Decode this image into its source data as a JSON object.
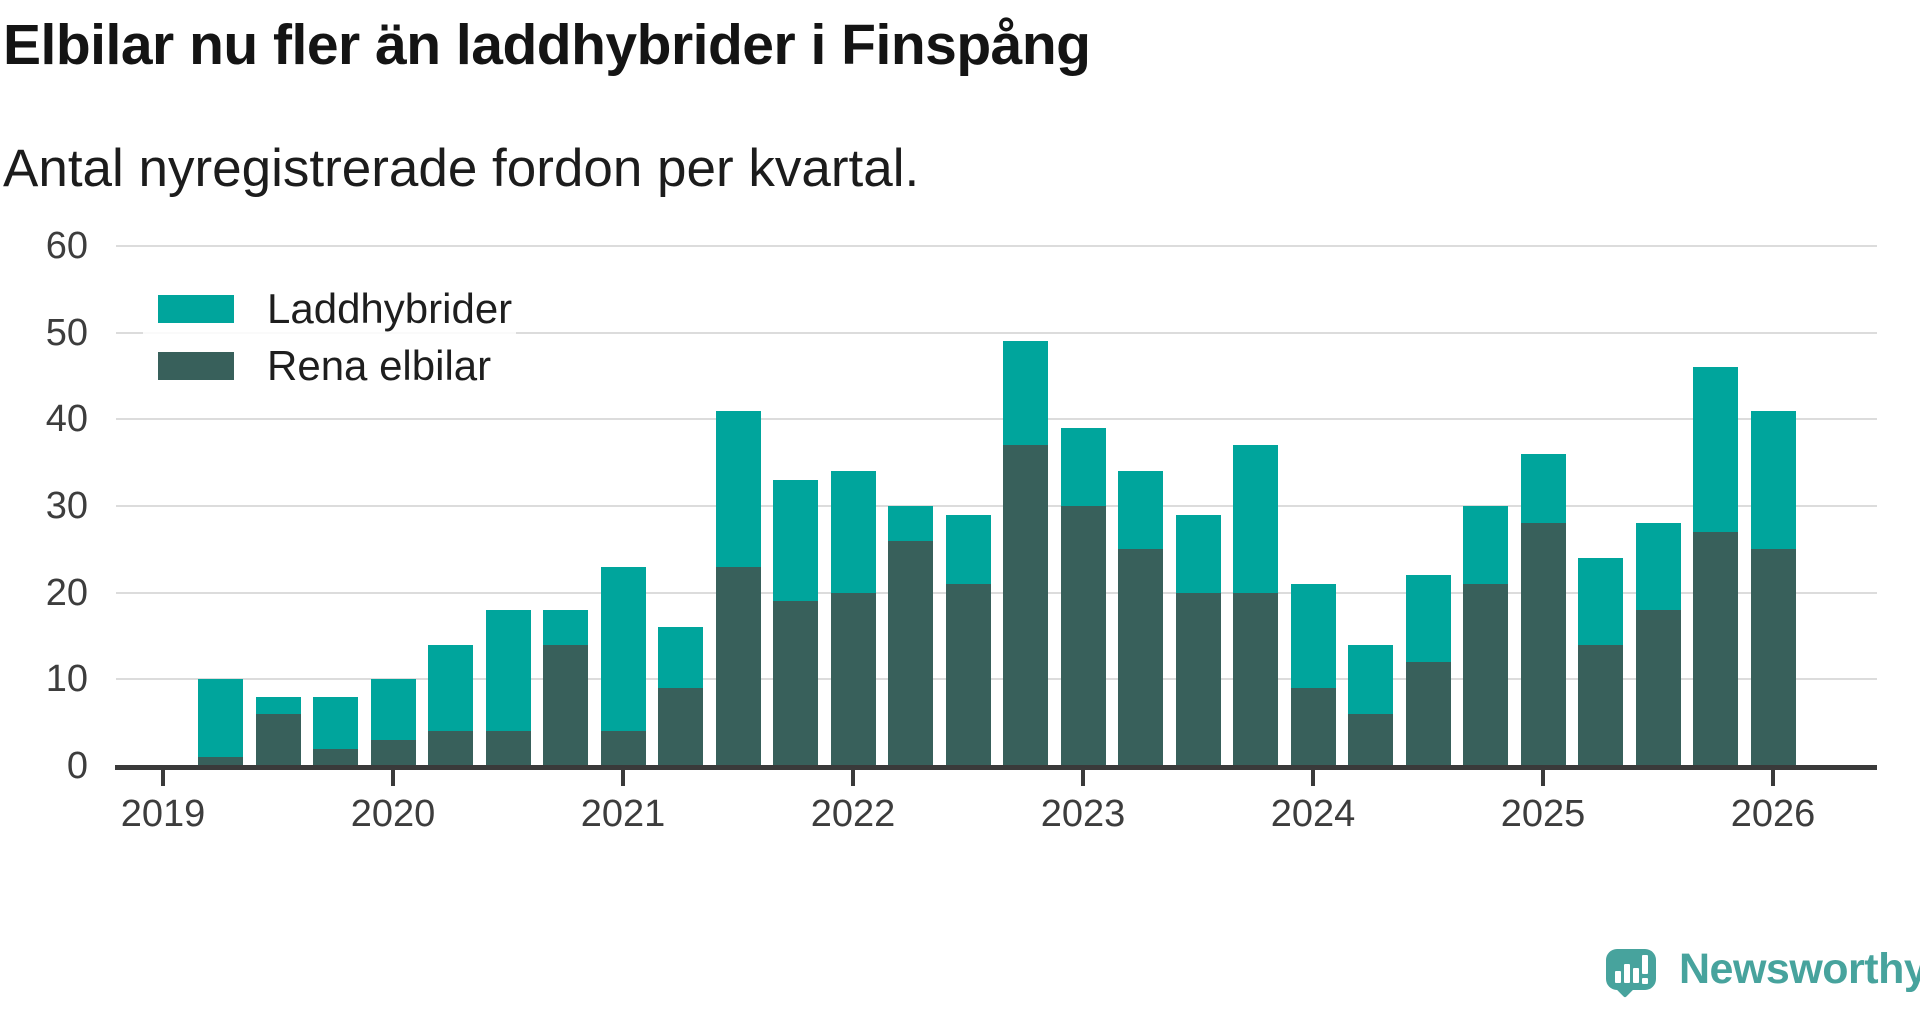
{
  "header": {
    "title": "Elbilar nu fler än laddhybrider i Finspång",
    "subtitle": "Antal nyregistrerade fordon per kvartal."
  },
  "brand": {
    "name": "Newsworthy",
    "color": "#47a39d",
    "icon": "newsworthy-speech-bubble-bar-chart-icon"
  },
  "palette": {
    "laddhybrider": "#00a59c",
    "rena_elbilar": "#38605b",
    "gridline": "#dcdcdc",
    "axis": "#3a3a3a",
    "tick_text": "#3d3d3d"
  },
  "chart_data": {
    "type": "bar",
    "stacked": true,
    "title": "Elbilar nu fler än laddhybrider i Finspång",
    "subtitle": "Antal nyregistrerade fordon per kvartal.",
    "xlabel": "",
    "ylabel": "",
    "ylim": [
      0,
      60
    ],
    "yticks": [
      0,
      10,
      20,
      30,
      40,
      50,
      60
    ],
    "year_ticks": [
      2019,
      2020,
      2021,
      2022,
      2023,
      2024,
      2025,
      2026
    ],
    "grid": "horizontal",
    "legend_position": "top-left",
    "series": [
      {
        "name": "Laddhybrider",
        "key": "laddhybrider",
        "color": "#00a59c",
        "stack_order": "top"
      },
      {
        "name": "Rena elbilar",
        "key": "rena_elbilar",
        "color": "#38605b",
        "stack_order": "bottom"
      }
    ],
    "points": [
      {
        "year": 2019,
        "quarter": 2,
        "rena_elbilar": 1,
        "laddhybrider": 9,
        "total": 10
      },
      {
        "year": 2019,
        "quarter": 3,
        "rena_elbilar": 6,
        "laddhybrider": 2,
        "total": 8
      },
      {
        "year": 2019,
        "quarter": 4,
        "rena_elbilar": 2,
        "laddhybrider": 6,
        "total": 8
      },
      {
        "year": 2020,
        "quarter": 1,
        "rena_elbilar": 3,
        "laddhybrider": 7,
        "total": 10
      },
      {
        "year": 2020,
        "quarter": 2,
        "rena_elbilar": 4,
        "laddhybrider": 10,
        "total": 14
      },
      {
        "year": 2020,
        "quarter": 3,
        "rena_elbilar": 4,
        "laddhybrider": 14,
        "total": 18
      },
      {
        "year": 2020,
        "quarter": 4,
        "rena_elbilar": 14,
        "laddhybrider": 4,
        "total": 18
      },
      {
        "year": 2021,
        "quarter": 1,
        "rena_elbilar": 4,
        "laddhybrider": 19,
        "total": 23
      },
      {
        "year": 2021,
        "quarter": 2,
        "rena_elbilar": 9,
        "laddhybrider": 7,
        "total": 16
      },
      {
        "year": 2021,
        "quarter": 3,
        "rena_elbilar": 23,
        "laddhybrider": 18,
        "total": 41
      },
      {
        "year": 2021,
        "quarter": 4,
        "rena_elbilar": 19,
        "laddhybrider": 14,
        "total": 33
      },
      {
        "year": 2022,
        "quarter": 1,
        "rena_elbilar": 20,
        "laddhybrider": 14,
        "total": 34
      },
      {
        "year": 2022,
        "quarter": 2,
        "rena_elbilar": 26,
        "laddhybrider": 4,
        "total": 30
      },
      {
        "year": 2022,
        "quarter": 3,
        "rena_elbilar": 21,
        "laddhybrider": 8,
        "total": 29
      },
      {
        "year": 2022,
        "quarter": 4,
        "rena_elbilar": 37,
        "laddhybrider": 12,
        "total": 49
      },
      {
        "year": 2023,
        "quarter": 1,
        "rena_elbilar": 30,
        "laddhybrider": 9,
        "total": 39
      },
      {
        "year": 2023,
        "quarter": 2,
        "rena_elbilar": 25,
        "laddhybrider": 9,
        "total": 34
      },
      {
        "year": 2023,
        "quarter": 3,
        "rena_elbilar": 20,
        "laddhybrider": 9,
        "total": 29
      },
      {
        "year": 2023,
        "quarter": 4,
        "rena_elbilar": 20,
        "laddhybrider": 17,
        "total": 37
      },
      {
        "year": 2024,
        "quarter": 1,
        "rena_elbilar": 9,
        "laddhybrider": 12,
        "total": 21
      },
      {
        "year": 2024,
        "quarter": 2,
        "rena_elbilar": 6,
        "laddhybrider": 8,
        "total": 14
      },
      {
        "year": 2024,
        "quarter": 3,
        "rena_elbilar": 12,
        "laddhybrider": 10,
        "total": 22
      },
      {
        "year": 2024,
        "quarter": 4,
        "rena_elbilar": 21,
        "laddhybrider": 9,
        "total": 30
      },
      {
        "year": 2025,
        "quarter": 1,
        "rena_elbilar": 28,
        "laddhybrider": 8,
        "total": 36
      },
      {
        "year": 2025,
        "quarter": 2,
        "rena_elbilar": 14,
        "laddhybrider": 10,
        "total": 24
      },
      {
        "year": 2025,
        "quarter": 3,
        "rena_elbilar": 18,
        "laddhybrider": 10,
        "total": 28
      },
      {
        "year": 2025,
        "quarter": 4,
        "rena_elbilar": 27,
        "laddhybrider": 19,
        "total": 46
      },
      {
        "year": 2026,
        "quarter": 1,
        "rena_elbilar": 25,
        "laddhybrider": 16,
        "total": 41
      }
    ]
  }
}
